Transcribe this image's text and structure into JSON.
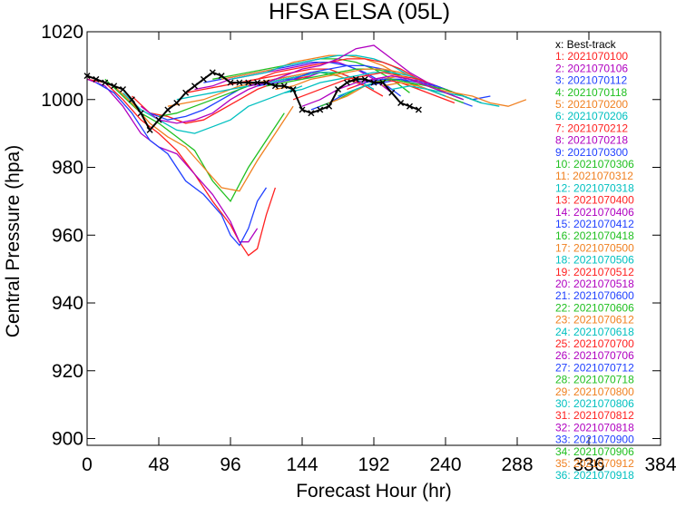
{
  "chart_data": {
    "type": "line",
    "title": "HFSA  ELSA (05L)",
    "xlabel": "Forecast Hour (hr)",
    "ylabel": "Central Pressure (hpa)",
    "xlim": [
      0,
      384
    ],
    "ylim": [
      898,
      1020
    ],
    "xticks": [
      0,
      48,
      96,
      144,
      192,
      240,
      288,
      336,
      384
    ],
    "yticks": [
      900,
      920,
      940,
      960,
      980,
      1000,
      1020
    ],
    "legend_position": "right",
    "best_track": {
      "name": "x: Best-track",
      "color": "#000000",
      "x": [
        0,
        6,
        12,
        18,
        24,
        30,
        36,
        42,
        48,
        54,
        60,
        66,
        72,
        78,
        84,
        90,
        96,
        102,
        108,
        114,
        120,
        126,
        132,
        138,
        144,
        150,
        156,
        162,
        168,
        174,
        180,
        186,
        192,
        198,
        204,
        210,
        216,
        222
      ],
      "y": [
        1007,
        1006,
        1005,
        1004,
        1003,
        1000,
        996,
        991,
        994,
        997,
        999,
        1002,
        1004,
        1006,
        1008,
        1007,
        1005,
        1005,
        1005,
        1005,
        1005,
        1004,
        1004,
        1003,
        997,
        996,
        997,
        998,
        1003,
        1005,
        1006,
        1006,
        1005,
        1005,
        1002,
        999,
        998,
        997
      ]
    },
    "series": [
      {
        "name": "1: 2021070100",
        "color": "#ff2020",
        "x": [
          0,
          12,
          24,
          36,
          48,
          60,
          72,
          84,
          96,
          102,
          108,
          114,
          120,
          126
        ],
        "y": [
          1006,
          1005,
          1000,
          994,
          990,
          985,
          978,
          970,
          963,
          958,
          954,
          956,
          966,
          974
        ]
      },
      {
        "name": "2: 2021070106",
        "color": "#b000c0",
        "x": [
          0,
          12,
          24,
          36,
          48,
          60,
          72,
          84,
          96,
          102,
          108,
          114
        ],
        "y": [
          1006,
          1004,
          998,
          990,
          986,
          984,
          978,
          972,
          964,
          958,
          958,
          962
        ]
      },
      {
        "name": "3: 2021070112",
        "color": "#2040ff",
        "x": [
          6,
          18,
          30,
          42,
          54,
          66,
          78,
          90,
          96,
          102,
          108,
          114,
          120
        ],
        "y": [
          1005,
          1002,
          996,
          988,
          984,
          976,
          972,
          966,
          960,
          957,
          962,
          970,
          974
        ]
      },
      {
        "name": "4: 2021070118",
        "color": "#20c020",
        "x": [
          12,
          24,
          36,
          48,
          60,
          72,
          84,
          96,
          108,
          120,
          132
        ],
        "y": [
          1006,
          1001,
          996,
          993,
          989,
          985,
          976,
          970,
          980,
          988,
          996
        ]
      },
      {
        "name": "5: 2021070200",
        "color": "#f08020",
        "x": [
          18,
          30,
          42,
          54,
          66,
          78,
          90,
          102,
          114,
          126,
          138
        ],
        "y": [
          1004,
          999,
          993,
          989,
          986,
          980,
          974,
          973,
          982,
          990,
          998
        ]
      },
      {
        "name": "6: 2021070206",
        "color": "#00c0c0",
        "x": [
          24,
          36,
          48,
          60,
          72,
          84,
          96,
          108,
          120,
          132,
          144
        ],
        "y": [
          1002,
          997,
          994,
          991,
          990,
          992,
          994,
          998,
          1000,
          1002,
          1004
        ]
      },
      {
        "name": "7: 2021070212",
        "color": "#ff2020",
        "x": [
          30,
          42,
          54,
          66,
          78,
          90,
          102,
          114,
          126,
          138,
          150
        ],
        "y": [
          1001,
          996,
          995,
          993,
          994,
          997,
          1000,
          1003,
          1005,
          1006,
          1007
        ]
      },
      {
        "name": "8: 2021070218",
        "color": "#b000c0",
        "x": [
          36,
          48,
          60,
          72,
          84,
          96,
          108,
          120,
          132,
          144,
          156
        ],
        "y": [
          998,
          994,
          993,
          994,
          996,
          1000,
          1003,
          1005,
          1006,
          1006,
          1008
        ]
      },
      {
        "name": "9: 2021070300",
        "color": "#2040ff",
        "x": [
          42,
          54,
          66,
          78,
          90,
          102,
          114,
          126,
          138,
          150,
          162
        ],
        "y": [
          996,
          994,
          995,
          997,
          1000,
          1003,
          1005,
          1006,
          1007,
          1008,
          1008
        ]
      },
      {
        "name": "10: 2021070306",
        "color": "#20c020",
        "x": [
          48,
          60,
          72,
          84,
          96,
          108,
          120,
          132,
          144,
          156,
          168,
          180
        ],
        "y": [
          995,
          996,
          998,
          1000,
          1002,
          1004,
          1005,
          1006,
          1007,
          1008,
          1007,
          1005
        ]
      },
      {
        "name": "11: 2021070312",
        "color": "#f08020",
        "x": [
          54,
          66,
          78,
          90,
          102,
          114,
          126,
          138,
          150,
          162,
          174,
          186
        ],
        "y": [
          998,
          999,
          1000,
          1002,
          1004,
          1005,
          1006,
          1007,
          1008,
          1008,
          1006,
          1004
        ]
      },
      {
        "name": "12: 2021070318",
        "color": "#00c0c0",
        "x": [
          60,
          72,
          84,
          96,
          108,
          120,
          132,
          144,
          156,
          168,
          180,
          192
        ],
        "y": [
          1000,
          1001,
          1002,
          1003,
          1004,
          1005,
          1006,
          1007,
          1008,
          1008,
          1006,
          1003
        ]
      },
      {
        "name": "13: 2021070400",
        "color": "#ff2020",
        "x": [
          66,
          78,
          90,
          102,
          114,
          126,
          138,
          150,
          162,
          174,
          186,
          198
        ],
        "y": [
          1002,
          1003,
          1004,
          1005,
          1006,
          1007,
          1008,
          1009,
          1009,
          1007,
          1004,
          1001
        ]
      },
      {
        "name": "14: 2021070406",
        "color": "#b000c0",
        "x": [
          72,
          84,
          96,
          108,
          120,
          132,
          144,
          156,
          168,
          180,
          192,
          204
        ],
        "y": [
          1003,
          1004,
          1006,
          1007,
          1008,
          1009,
          1010,
          1011,
          1011,
          1009,
          1006,
          1002
        ]
      },
      {
        "name": "15: 2021070412",
        "color": "#2040ff",
        "x": [
          78,
          90,
          102,
          114,
          126,
          138,
          150,
          162,
          174,
          186,
          198,
          210
        ],
        "y": [
          1005,
          1006,
          1007,
          1008,
          1009,
          1010,
          1011,
          1011,
          1010,
          1008,
          1005,
          1001
        ]
      },
      {
        "name": "16: 2021070418",
        "color": "#20c020",
        "x": [
          84,
          96,
          108,
          120,
          132,
          144,
          156,
          168,
          180,
          192,
          204,
          216
        ],
        "y": [
          1006,
          1007,
          1008,
          1009,
          1010,
          1011,
          1012,
          1012,
          1011,
          1009,
          1006,
          1002
        ]
      },
      {
        "name": "17: 2021070500",
        "color": "#f08020",
        "x": [
          90,
          102,
          114,
          126,
          138,
          150,
          162,
          174,
          186,
          198,
          210,
          222
        ],
        "y": [
          1006,
          1007,
          1008,
          1009,
          1011,
          1012,
          1013,
          1013,
          1012,
          1010,
          1007,
          1003
        ]
      },
      {
        "name": "18: 2021070506",
        "color": "#00c0c0",
        "x": [
          96,
          108,
          120,
          132,
          144,
          156,
          168,
          180,
          192,
          204,
          216,
          228
        ],
        "y": [
          1006,
          1007,
          1008,
          1010,
          1011,
          1012,
          1013,
          1013,
          1012,
          1010,
          1007,
          1004
        ]
      },
      {
        "name": "19: 2021070512",
        "color": "#ff2020",
        "x": [
          102,
          114,
          126,
          138,
          150,
          162,
          174,
          186,
          198,
          210,
          222,
          234
        ],
        "y": [
          1005,
          1006,
          1008,
          1009,
          1010,
          1011,
          1012,
          1012,
          1011,
          1009,
          1006,
          1003
        ]
      },
      {
        "name": "20: 2021070518",
        "color": "#b000c0",
        "x": [
          108,
          120,
          132,
          144,
          156,
          168,
          180,
          192,
          204,
          216,
          228,
          240
        ],
        "y": [
          1004,
          1005,
          1007,
          1009,
          1010,
          1012,
          1015,
          1016,
          1012,
          1008,
          1005,
          1002
        ]
      },
      {
        "name": "21: 2021070600",
        "color": "#2040ff",
        "x": [
          114,
          126,
          138,
          150,
          162,
          174,
          186,
          198,
          210,
          222,
          234,
          246
        ],
        "y": [
          1004,
          1005,
          1006,
          1008,
          1009,
          1010,
          1010,
          1009,
          1007,
          1005,
          1003,
          1001
        ]
      },
      {
        "name": "22: 2021070606",
        "color": "#20c020",
        "x": [
          120,
          132,
          144,
          156,
          168,
          180,
          192,
          204,
          216,
          228,
          240,
          252
        ],
        "y": [
          1004,
          1005,
          1006,
          1007,
          1008,
          1009,
          1009,
          1008,
          1006,
          1004,
          1002,
          1000
        ]
      },
      {
        "name": "23: 2021070612",
        "color": "#f08020",
        "x": [
          126,
          138,
          150,
          162,
          174,
          186,
          198,
          210,
          222,
          234,
          246,
          258
        ],
        "y": [
          1003,
          1004,
          1006,
          1007,
          1008,
          1009,
          1009,
          1008,
          1006,
          1004,
          1002,
          1000
        ]
      },
      {
        "name": "24: 2021070618",
        "color": "#00c0c0",
        "x": [
          132,
          144,
          156,
          168,
          180,
          192,
          204,
          216,
          228,
          240,
          252,
          264
        ],
        "y": [
          1002,
          1003,
          1005,
          1006,
          1007,
          1008,
          1008,
          1007,
          1005,
          1003,
          1001,
          999
        ]
      },
      {
        "name": "25: 2021070700",
        "color": "#ff2020",
        "x": [
          138,
          150,
          162,
          174,
          186,
          198,
          210,
          222,
          234,
          246,
          258
        ],
        "y": [
          1000,
          1002,
          1004,
          1006,
          1007,
          1008,
          1007,
          1006,
          1004,
          1002,
          1000
        ]
      },
      {
        "name": "26: 2021070706",
        "color": "#b000c0",
        "x": [
          144,
          156,
          168,
          180,
          192,
          204,
          216,
          228,
          240,
          252,
          264
        ],
        "y": [
          998,
          1000,
          1003,
          1005,
          1006,
          1007,
          1006,
          1005,
          1003,
          1001,
          999
        ]
      },
      {
        "name": "27: 2021070712",
        "color": "#2040ff",
        "x": [
          150,
          162,
          174,
          186,
          198,
          210,
          222,
          234,
          246,
          258,
          270
        ],
        "y": [
          997,
          999,
          1002,
          1004,
          1005,
          1006,
          1005,
          1004,
          1002,
          1000,
          1001
        ]
      },
      {
        "name": "28: 2021070718",
        "color": "#20c020",
        "x": [
          156,
          168,
          180,
          192,
          204,
          216,
          228,
          240,
          252,
          264
        ],
        "y": [
          998,
          1000,
          1003,
          1005,
          1006,
          1005,
          1004,
          1003,
          1001,
          999
        ]
      },
      {
        "name": "29: 2021070800",
        "color": "#f08020",
        "x": [
          162,
          174,
          186,
          198,
          210,
          222,
          234,
          246,
          258,
          270,
          282,
          294
        ],
        "y": [
          999,
          1001,
          1004,
          1006,
          1007,
          1005,
          1003,
          1002,
          1001,
          999,
          998,
          1000
        ]
      },
      {
        "name": "30: 2021070806",
        "color": "#00c0c0",
        "x": [
          168,
          180,
          192,
          204,
          216,
          228,
          240,
          252,
          264,
          276
        ],
        "y": [
          1001,
          1003,
          1005,
          1006,
          1005,
          1003,
          1002,
          1001,
          999,
          998
        ]
      },
      {
        "name": "31: 2021070812",
        "color": "#ff2020",
        "x": [
          174,
          186,
          198,
          210,
          222,
          234,
          246
        ],
        "y": [
          1003,
          1005,
          1006,
          1005,
          1003,
          1001,
          999
        ]
      },
      {
        "name": "32: 2021070818",
        "color": "#b000c0",
        "x": [
          180,
          192,
          204,
          216,
          228,
          240,
          252
        ],
        "y": [
          1004,
          1006,
          1007,
          1006,
          1004,
          1002,
          1000
        ]
      },
      {
        "name": "33: 2021070900",
        "color": "#2040ff",
        "x": [
          186,
          198,
          210,
          222,
          234,
          246,
          258
        ],
        "y": [
          1005,
          1006,
          1006,
          1004,
          1002,
          1000,
          998
        ]
      },
      {
        "name": "34: 2021070906",
        "color": "#20c020",
        "x": [
          192,
          204,
          216,
          228,
          240,
          252
        ],
        "y": [
          1005,
          1006,
          1005,
          1003,
          1001,
          999
        ]
      },
      {
        "name": "35: 2021070912",
        "color": "#f08020",
        "x": [
          198,
          210,
          222,
          234,
          246
        ],
        "y": [
          1004,
          1005,
          1004,
          1002,
          1000
        ]
      },
      {
        "name": "36: 2021070918",
        "color": "#00c0c0",
        "x": [
          204,
          216,
          228,
          240
        ],
        "y": [
          1003,
          1004,
          1003,
          1001
        ]
      }
    ]
  }
}
